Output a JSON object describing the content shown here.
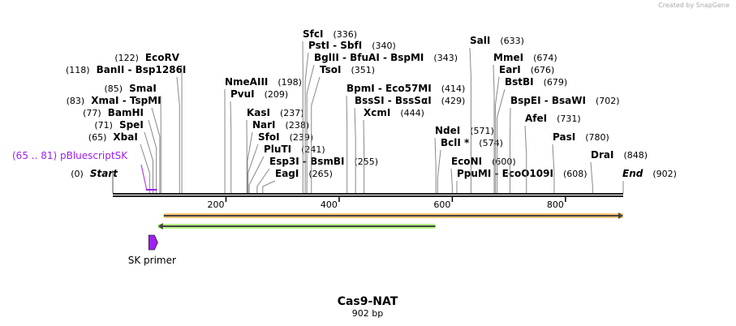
{
  "credit": "Created by SnapGene",
  "title": "Cas9-NAT",
  "length_label": "902 bp",
  "total_bp": 902,
  "ticks": [
    200,
    400,
    600,
    800
  ],
  "sites": [
    {
      "names": [
        "Start"
      ],
      "pos": "0",
      "bp": 0,
      "italic": true
    },
    {
      "names": [
        "XbaI"
      ],
      "pos": "65",
      "bp": 65
    },
    {
      "names": [
        "SpeI"
      ],
      "pos": "71",
      "bp": 71
    },
    {
      "names": [
        "BamHI"
      ],
      "pos": "77",
      "bp": 77
    },
    {
      "names": [
        "XmaI",
        "TspMI"
      ],
      "pos": "83",
      "bp": 83
    },
    {
      "names": [
        "SmaI"
      ],
      "pos": "85",
      "bp": 85
    },
    {
      "names": [
        "BanII",
        "Bsp1286I"
      ],
      "pos": "118",
      "bp": 118
    },
    {
      "names": [
        "EcoRV"
      ],
      "pos": "122",
      "bp": 122
    },
    {
      "names": [
        "NmeAIII"
      ],
      "pos": "198",
      "bp": 198
    },
    {
      "names": [
        "PvuI"
      ],
      "pos": "209",
      "bp": 209
    },
    {
      "names": [
        "KasI"
      ],
      "pos": "237",
      "bp": 237
    },
    {
      "names": [
        "NarI"
      ],
      "pos": "238",
      "bp": 238
    },
    {
      "names": [
        "SfoI"
      ],
      "pos": "239",
      "bp": 239
    },
    {
      "names": [
        "PluTI"
      ],
      "pos": "241",
      "bp": 241
    },
    {
      "names": [
        "Esp3I",
        "BsmBI"
      ],
      "pos": "255",
      "bp": 255
    },
    {
      "names": [
        "EagI"
      ],
      "pos": "265",
      "bp": 265
    },
    {
      "names": [
        "SfcI"
      ],
      "pos": "336",
      "bp": 336
    },
    {
      "names": [
        "PstI",
        "SbfI"
      ],
      "pos": "340",
      "bp": 340
    },
    {
      "names": [
        "BglII",
        "BfuAI",
        "BspMI"
      ],
      "pos": "343",
      "bp": 343
    },
    {
      "names": [
        "TsoI"
      ],
      "pos": "351",
      "bp": 351
    },
    {
      "names": [
        "BpmI",
        "Eco57MI"
      ],
      "pos": "414",
      "bp": 414
    },
    {
      "names": [
        "BssSI",
        "BssSαI"
      ],
      "pos": "429",
      "bp": 429
    },
    {
      "names": [
        "XcmI"
      ],
      "pos": "444",
      "bp": 444
    },
    {
      "names": [
        "NdeI"
      ],
      "pos": "571",
      "bp": 571
    },
    {
      "names": [
        "BclI *"
      ],
      "pos": "574",
      "bp": 574
    },
    {
      "names": [
        "EcoNI"
      ],
      "pos": "600",
      "bp": 600
    },
    {
      "names": [
        "PpuMI",
        "EcoO109I"
      ],
      "pos": "608",
      "bp": 608
    },
    {
      "names": [
        "SalI"
      ],
      "pos": "633",
      "bp": 633
    },
    {
      "names": [
        "MmeI"
      ],
      "pos": "674",
      "bp": 674
    },
    {
      "names": [
        "EarI"
      ],
      "pos": "676",
      "bp": 676
    },
    {
      "names": [
        "BstBI"
      ],
      "pos": "679",
      "bp": 679
    },
    {
      "names": [
        "BspEI",
        "BsaWI"
      ],
      "pos": "702",
      "bp": 702
    },
    {
      "names": [
        "AfeI"
      ],
      "pos": "731",
      "bp": 731
    },
    {
      "names": [
        "PasI"
      ],
      "pos": "780",
      "bp": 780
    },
    {
      "names": [
        "DraI"
      ],
      "pos": "848",
      "bp": 848
    },
    {
      "names": [
        "End"
      ],
      "pos": "902",
      "bp": 902,
      "italic": true
    }
  ],
  "feature_label": {
    "name": "pBluescriptSK",
    "range": "65 .. 81",
    "start": 65,
    "end": 81,
    "color": "#a020f0"
  },
  "features": [
    {
      "name": "orange-feature",
      "start": 90,
      "end": 902,
      "direction": "forward",
      "color": "#f9c57a"
    },
    {
      "name": "green-feature",
      "start": 80,
      "end": 570,
      "direction": "reverse",
      "color": "#b9f486"
    }
  ],
  "primer": {
    "label": "SK primer",
    "start": 65,
    "end": 81,
    "color": "#a020f0"
  }
}
